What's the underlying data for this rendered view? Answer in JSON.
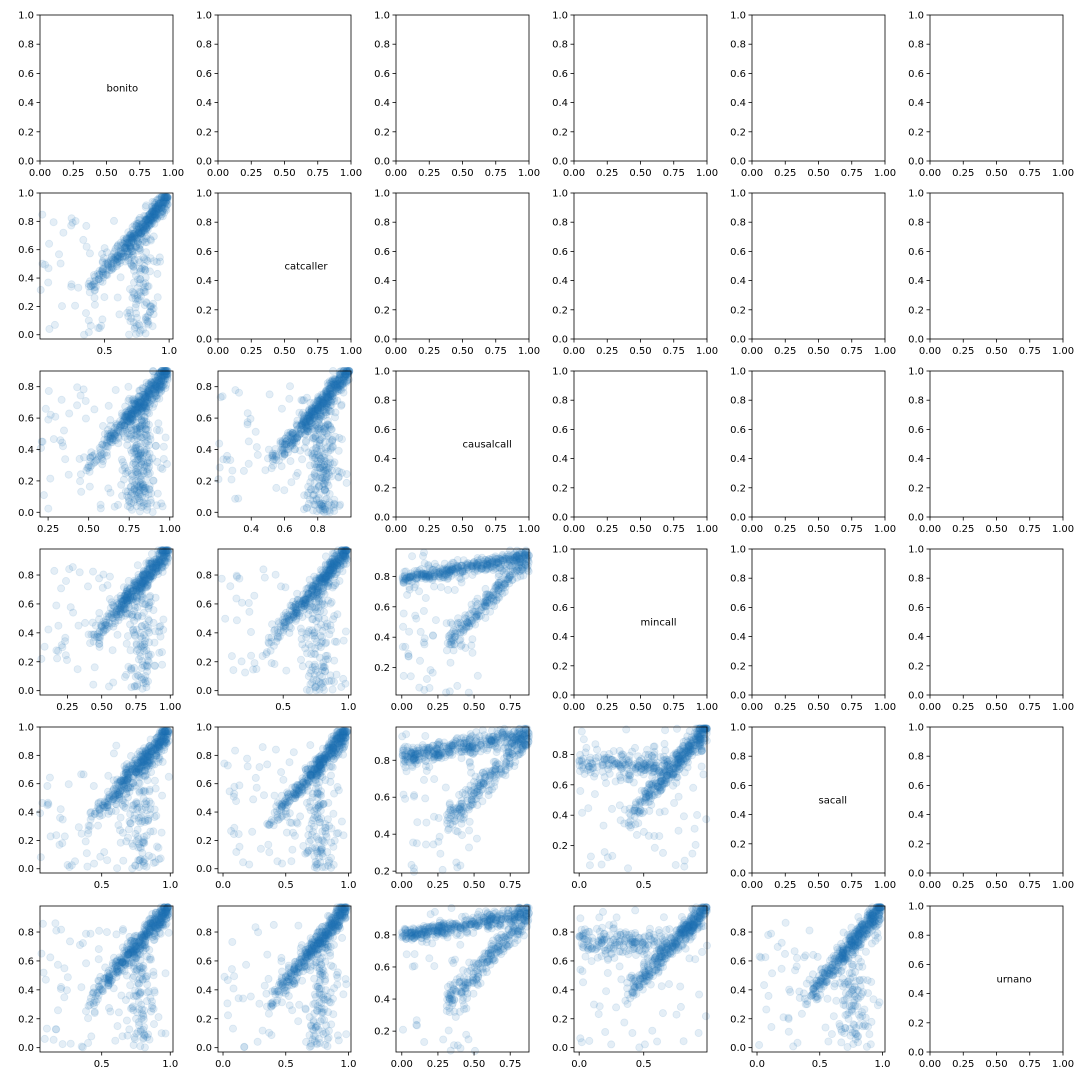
{
  "chart_data": {
    "type": "scatter",
    "layout": "pairplot-lower-triangle",
    "variables": [
      "bonito",
      "catcaller",
      "causalcall",
      "mincall",
      "sacall",
      "urnano"
    ],
    "marker_color": "#1f77b4",
    "marker_alpha": 0.12,
    "default_axis": {
      "xlim": [
        0,
        1
      ],
      "ylim": [
        0,
        1
      ],
      "ticks": [
        0.0,
        0.2,
        0.4,
        0.6,
        0.8,
        1.0
      ],
      "xticks": [
        0.0,
        0.25,
        0.5,
        0.75,
        1.0
      ]
    },
    "diagonal_labels": [
      "bonito",
      "catcaller",
      "causalcall",
      "mincall",
      "sacall",
      "urnano"
    ],
    "panels": [
      {
        "row": 1,
        "col": 0,
        "x": "bonito",
        "y": "catcaller",
        "xlim": [
          0.0,
          1.03
        ],
        "ylim": [
          -0.03,
          1.0
        ],
        "xticks": [
          "0.5",
          "1.0"
        ],
        "yticks": [
          "0.0",
          "0.2",
          "0.4",
          "0.6",
          "0.8",
          "1.0"
        ],
        "shape": "diagonal+spread"
      },
      {
        "row": 2,
        "col": 0,
        "x": "bonito",
        "y": "causalcall",
        "xlim": [
          0.2,
          1.02
        ],
        "ylim": [
          -0.03,
          0.9
        ],
        "xticks": [
          "0.25",
          "0.50",
          "0.75",
          "1.00"
        ],
        "yticks": [
          "0.0",
          "0.2",
          "0.4",
          "0.6",
          "0.8"
        ],
        "shape": "diagonal+vertical"
      },
      {
        "row": 2,
        "col": 1,
        "x": "catcaller",
        "y": "causalcall",
        "xlim": [
          0.2,
          1.0
        ],
        "ylim": [
          -0.03,
          0.9
        ],
        "xticks": [
          "0.4",
          "0.6",
          "0.8"
        ],
        "yticks": [
          "0.0",
          "0.2",
          "0.4",
          "0.6",
          "0.8"
        ],
        "shape": "diagonal+vertical"
      },
      {
        "row": 3,
        "col": 0,
        "x": "bonito",
        "y": "mincall",
        "xlim": [
          0.05,
          1.02
        ],
        "ylim": [
          -0.03,
          0.98
        ],
        "xticks": [
          "0.25",
          "0.50",
          "0.75",
          "1.00"
        ],
        "yticks": [
          "0.0",
          "0.2",
          "0.4",
          "0.6",
          "0.8"
        ],
        "shape": "diagonal+spread"
      },
      {
        "row": 3,
        "col": 1,
        "x": "catcaller",
        "y": "mincall",
        "xlim": [
          0.0,
          1.02
        ],
        "ylim": [
          -0.03,
          0.98
        ],
        "xticks": [
          "0.5",
          "1.0"
        ],
        "yticks": [
          "0.0",
          "0.2",
          "0.4",
          "0.6",
          "0.8"
        ],
        "shape": "diagonal+spread"
      },
      {
        "row": 3,
        "col": 2,
        "x": "causalcall",
        "y": "mincall",
        "xlim": [
          -0.04,
          0.88
        ],
        "ylim": [
          0.02,
          0.98
        ],
        "xticks": [
          "0.00",
          "0.25",
          "0.50",
          "0.75"
        ],
        "yticks": [
          "0.2",
          "0.4",
          "0.6",
          "0.8"
        ],
        "shape": "plateau+diagonal"
      },
      {
        "row": 4,
        "col": 0,
        "x": "bonito",
        "y": "sacall",
        "xlim": [
          0.05,
          1.02
        ],
        "ylim": [
          -0.03,
          1.0
        ],
        "xticks": [
          "0.5",
          "1.0"
        ],
        "yticks": [
          "0.0",
          "0.2",
          "0.4",
          "0.6",
          "0.8",
          "1.0"
        ],
        "shape": "diagonal+spread"
      },
      {
        "row": 4,
        "col": 1,
        "x": "catcaller",
        "y": "sacall",
        "xlim": [
          -0.04,
          1.02
        ],
        "ylim": [
          -0.03,
          1.0
        ],
        "xticks": [
          "0.0",
          "0.5",
          "1.0"
        ],
        "yticks": [
          "0.0",
          "0.2",
          "0.4",
          "0.6",
          "0.8",
          "1.0"
        ],
        "shape": "diagonal+spread"
      },
      {
        "row": 4,
        "col": 2,
        "x": "causalcall",
        "y": "sacall",
        "xlim": [
          -0.04,
          0.88
        ],
        "ylim": [
          0.19,
          0.98
        ],
        "xticks": [
          "0.00",
          "0.25",
          "0.50",
          "0.75"
        ],
        "yticks": [
          "0.2",
          "0.4",
          "0.6",
          "0.8"
        ],
        "shape": "plateau+diagonal"
      },
      {
        "row": 4,
        "col": 3,
        "x": "mincall",
        "y": "sacall",
        "xlim": [
          -0.04,
          0.99
        ],
        "ylim": [
          0.02,
          0.98
        ],
        "xticks": [
          "0.0",
          "0.5"
        ],
        "yticks": [
          "0.2",
          "0.4",
          "0.6",
          "0.8"
        ],
        "shape": "diagonal+plateau"
      },
      {
        "row": 5,
        "col": 0,
        "x": "bonito",
        "y": "urnano",
        "xlim": [
          0.05,
          1.02
        ],
        "ylim": [
          -0.03,
          0.98
        ],
        "xticks": [
          "0.5",
          "1.0"
        ],
        "yticks": [
          "0.0",
          "0.2",
          "0.4",
          "0.6",
          "0.8"
        ],
        "shape": "diagonal+spread"
      },
      {
        "row": 5,
        "col": 1,
        "x": "catcaller",
        "y": "urnano",
        "xlim": [
          -0.04,
          1.02
        ],
        "ylim": [
          -0.03,
          0.98
        ],
        "xticks": [
          "0.0",
          "0.5",
          "1.0"
        ],
        "yticks": [
          "0.0",
          "0.2",
          "0.4",
          "0.6",
          "0.8"
        ],
        "shape": "diagonal+spread"
      },
      {
        "row": 5,
        "col": 2,
        "x": "causalcall",
        "y": "urnano",
        "xlim": [
          -0.04,
          0.88
        ],
        "ylim": [
          0.07,
          0.98
        ],
        "xticks": [
          "0.00",
          "0.25",
          "0.50",
          "0.75"
        ],
        "yticks": [
          "0.2",
          "0.4",
          "0.6",
          "0.8"
        ],
        "shape": "plateau+diagonal"
      },
      {
        "row": 5,
        "col": 3,
        "x": "mincall",
        "y": "urnano",
        "xlim": [
          -0.04,
          0.99
        ],
        "ylim": [
          -0.03,
          0.98
        ],
        "xticks": [
          "0.0",
          "0.5"
        ],
        "yticks": [
          "0.0",
          "0.2",
          "0.4",
          "0.6",
          "0.8"
        ],
        "shape": "diagonal+plateau"
      },
      {
        "row": 5,
        "col": 4,
        "x": "sacall",
        "y": "urnano",
        "xlim": [
          -0.04,
          1.02
        ],
        "ylim": [
          -0.03,
          0.98
        ],
        "xticks": [
          "0.0",
          "0.5",
          "1.0"
        ],
        "yticks": [
          "0.0",
          "0.2",
          "0.4",
          "0.6",
          "0.8"
        ],
        "shape": "diagonal+spread"
      }
    ]
  }
}
